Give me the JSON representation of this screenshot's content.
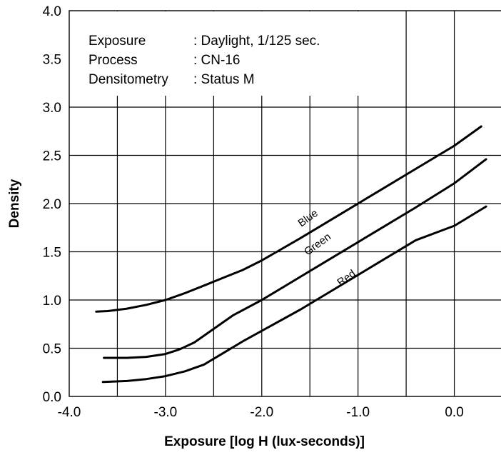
{
  "chart_data": {
    "type": "line",
    "title": "",
    "xlabel": "Exposure [log H (lux-seconds)]",
    "ylabel": "Density",
    "xlim": [
      -4.0,
      0.5
    ],
    "ylim": [
      0.0,
      4.0
    ],
    "grid": true,
    "x_tick_labels": [
      {
        "value": -4.0,
        "label": "-4.0"
      },
      {
        "value": -3.0,
        "label": "-3.0"
      },
      {
        "value": -2.0,
        "label": "-2.0"
      },
      {
        "value": -1.0,
        "label": "-1.0"
      },
      {
        "value": 0.0,
        "label": "0.0"
      }
    ],
    "y_tick_labels": [
      {
        "value": 0.0,
        "label": "0.0"
      },
      {
        "value": 0.5,
        "label": "0.5"
      },
      {
        "value": 1.0,
        "label": "1.0"
      },
      {
        "value": 1.5,
        "label": "1.5"
      },
      {
        "value": 2.0,
        "label": "2.0"
      },
      {
        "value": 2.5,
        "label": "2.5"
      },
      {
        "value": 3.0,
        "label": "3.0"
      },
      {
        "value": 3.5,
        "label": "3.5"
      },
      {
        "value": 4.0,
        "label": "4.0"
      }
    ],
    "x_grid": [
      -3.5,
      -3.0,
      -2.5,
      -2.0,
      -1.5,
      -1.0,
      -0.5,
      0.0
    ],
    "y_grid": [
      0.5,
      1.0,
      1.5,
      2.0,
      2.5,
      3.0
    ],
    "annotations": [
      {
        "label": "Exposure",
        "value": ": Daylight, 1/125 sec."
      },
      {
        "label": "Process",
        "value": ": CN-16"
      },
      {
        "label": "Densitometry",
        "value": ": Status M"
      }
    ],
    "series": [
      {
        "name": "Blue",
        "label_at": {
          "x": -1.5,
          "y": 1.82,
          "angle": 36
        },
        "points": [
          [
            -3.72,
            0.88
          ],
          [
            -3.6,
            0.885
          ],
          [
            -3.4,
            0.91
          ],
          [
            -3.2,
            0.95
          ],
          [
            -3.0,
            1.0
          ],
          [
            -2.8,
            1.07
          ],
          [
            -2.6,
            1.15
          ],
          [
            -2.4,
            1.23
          ],
          [
            -2.2,
            1.31
          ],
          [
            -2.0,
            1.41
          ],
          [
            -1.6,
            1.64
          ],
          [
            -1.2,
            1.88
          ],
          [
            -0.8,
            2.12
          ],
          [
            -0.4,
            2.36
          ],
          [
            0.0,
            2.6
          ],
          [
            0.28,
            2.8
          ]
        ]
      },
      {
        "name": "Green",
        "label_at": {
          "x": -1.4,
          "y": 1.55,
          "angle": 36
        },
        "points": [
          [
            -3.64,
            0.4
          ],
          [
            -3.4,
            0.4
          ],
          [
            -3.2,
            0.41
          ],
          [
            -3.0,
            0.44
          ],
          [
            -2.85,
            0.49
          ],
          [
            -2.7,
            0.56
          ],
          [
            -2.5,
            0.7
          ],
          [
            -2.3,
            0.84
          ],
          [
            -2.0,
            1.0
          ],
          [
            -1.6,
            1.24
          ],
          [
            -1.2,
            1.48
          ],
          [
            -0.8,
            1.72
          ],
          [
            -0.4,
            1.96
          ],
          [
            0.0,
            2.21
          ],
          [
            0.33,
            2.46
          ]
        ]
      },
      {
        "name": "Red",
        "label_at": {
          "x": -1.1,
          "y": 1.2,
          "angle": 36
        },
        "points": [
          [
            -3.65,
            0.15
          ],
          [
            -3.4,
            0.16
          ],
          [
            -3.2,
            0.18
          ],
          [
            -3.0,
            0.21
          ],
          [
            -2.8,
            0.26
          ],
          [
            -2.6,
            0.33
          ],
          [
            -2.4,
            0.45
          ],
          [
            -2.2,
            0.57
          ],
          [
            -2.0,
            0.68
          ],
          [
            -1.6,
            0.9
          ],
          [
            -1.2,
            1.14
          ],
          [
            -0.8,
            1.38
          ],
          [
            -0.4,
            1.62
          ],
          [
            0.0,
            1.77
          ],
          [
            0.33,
            1.97
          ]
        ]
      }
    ]
  }
}
